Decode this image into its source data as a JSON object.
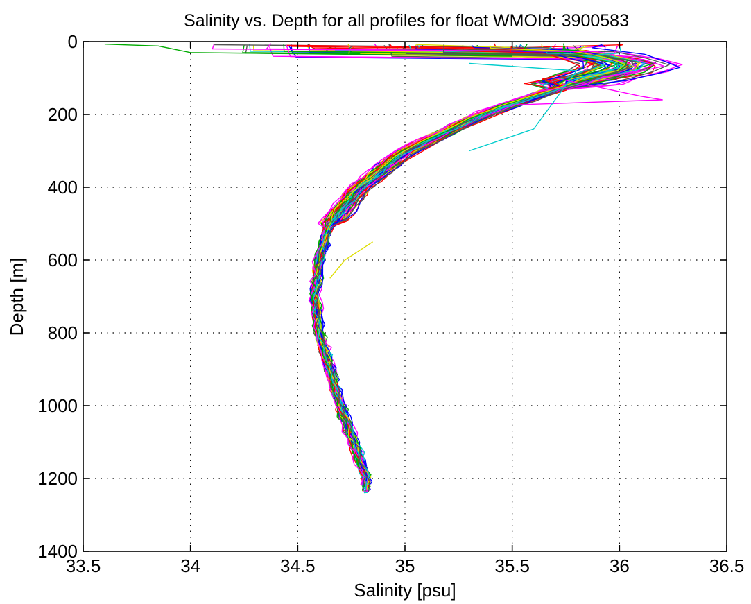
{
  "chart_data": {
    "type": "line",
    "title": "Salinity vs. Depth for all profiles for float WMOId: 3900583",
    "xlabel": "Salinity [psu]",
    "ylabel": "Depth [m]",
    "xlim": [
      33.5,
      36.5
    ],
    "ylim": [
      0,
      1400
    ],
    "y_reversed": true,
    "grid": true,
    "x_ticks": [
      33.5,
      34,
      34.5,
      35,
      35.5,
      36,
      36.5
    ],
    "x_tick_labels": [
      "33.5",
      "34",
      "34.5",
      "35",
      "35.5",
      "36",
      "36.5"
    ],
    "y_ticks": [
      0,
      200,
      400,
      600,
      800,
      1000,
      1200,
      1400
    ],
    "y_tick_labels": [
      "0",
      "200",
      "400",
      "600",
      "800",
      "1000",
      "1200",
      "1400"
    ],
    "profile_count_estimate": 70,
    "palette": [
      "#0000ff",
      "#ff0000",
      "#00aa00",
      "#dddd00",
      "#ff00ff",
      "#00cccc",
      "#555555"
    ],
    "representative_profile": {
      "depth": [
        5,
        20,
        40,
        60,
        80,
        100,
        150,
        200,
        300,
        400,
        500,
        600,
        700,
        800,
        900,
        1000,
        1100,
        1200
      ],
      "salinity": [
        35.3,
        35.7,
        35.9,
        36.05,
        36.0,
        35.85,
        35.6,
        35.35,
        35.0,
        34.78,
        34.65,
        34.6,
        34.58,
        34.6,
        34.65,
        34.7,
        34.76,
        34.82
      ]
    },
    "notable_profiles": [
      {
        "color": "#00aa00",
        "depth": [
          7,
          12,
          30,
          40
        ],
        "salinity": [
          33.6,
          33.85,
          34.0,
          35.5
        ]
      },
      {
        "color": "#ff00ff",
        "depth": [
          100,
          150,
          160,
          175
        ],
        "salinity": [
          35.7,
          36.1,
          36.2,
          35.45
        ]
      },
      {
        "color": "#00cccc",
        "depth": [
          60,
          80,
          240,
          300
        ],
        "salinity": [
          35.3,
          35.8,
          35.6,
          35.3
        ]
      },
      {
        "color": "#dddd00",
        "depth": [
          550,
          600,
          650
        ],
        "salinity": [
          34.85,
          34.72,
          34.65
        ]
      }
    ]
  }
}
